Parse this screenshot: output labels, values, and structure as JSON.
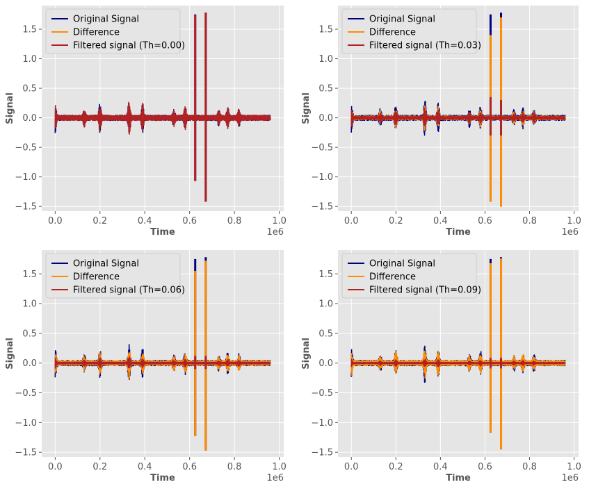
{
  "chart_data": [
    {
      "type": "line",
      "xlabel": "Time",
      "ylabel": "Signal",
      "x_offset_label": "1e6",
      "xlim": [
        -0.06,
        1.02
      ],
      "ylim": [
        -1.58,
        1.9
      ],
      "xticks": [
        0.0,
        0.2,
        0.4,
        0.6,
        0.8,
        1.0
      ],
      "xtick_labels": [
        "0.0",
        "0.2",
        "0.4",
        "0.6",
        "0.8",
        "1.0"
      ],
      "yticks": [
        -1.5,
        -1.0,
        -0.5,
        0.0,
        0.5,
        1.0,
        1.5
      ],
      "ytick_labels": [
        "−1.5",
        "−1.0",
        "−0.5",
        "0.0",
        "0.5",
        "1.0",
        "1.5"
      ],
      "grid": true,
      "legend_placement": "top-left",
      "series": [
        {
          "name": "Original Signal",
          "color": "#000080",
          "amp_scale": 1.0,
          "spikes": [
            {
              "x": 0.625,
              "top": 1.75,
              "bottom": -1.07
            },
            {
              "x": 0.672,
              "top": 1.78,
              "bottom": -1.42
            }
          ]
        },
        {
          "name": "Difference",
          "color": "#ff8c00",
          "amp_scale": 0.0,
          "spikes": []
        },
        {
          "name": "Filtered signal (Th=0.00)",
          "color": "#b22222",
          "amp_scale": 1.0,
          "spikes": [
            {
              "x": 0.625,
              "top": 1.74,
              "bottom": -1.07
            },
            {
              "x": 0.672,
              "top": 1.78,
              "bottom": -1.42
            }
          ]
        }
      ]
    },
    {
      "type": "line",
      "xlabel": "Time",
      "ylabel": "Signal",
      "x_offset_label": "1e6",
      "xlim": [
        -0.06,
        1.02
      ],
      "ylim": [
        -1.58,
        1.9
      ],
      "xticks": [
        0.0,
        0.2,
        0.4,
        0.6,
        0.8,
        1.0
      ],
      "xtick_labels": [
        "0.0",
        "0.2",
        "0.4",
        "0.6",
        "0.8",
        "1.0"
      ],
      "yticks": [
        -1.5,
        -1.0,
        -0.5,
        0.0,
        0.5,
        1.0,
        1.5
      ],
      "ytick_labels": [
        "−1.5",
        "−1.0",
        "−0.5",
        "0.0",
        "0.5",
        "1.0",
        "1.5"
      ],
      "grid": true,
      "legend_placement": "top-left",
      "series": [
        {
          "name": "Original Signal",
          "color": "#000080",
          "amp_scale": 1.0,
          "spikes": [
            {
              "x": 0.625,
              "top": 1.75,
              "bottom": -1.42
            },
            {
              "x": 0.672,
              "top": 1.78,
              "bottom": -1.5
            }
          ]
        },
        {
          "name": "Difference",
          "color": "#ff8c00",
          "amp_scale": 0.75,
          "spikes": [
            {
              "x": 0.625,
              "top": 1.4,
              "bottom": -1.42
            },
            {
              "x": 0.672,
              "top": 1.7,
              "bottom": -1.5
            }
          ]
        },
        {
          "name": "Filtered signal (Th=0.03)",
          "color": "#b22222",
          "amp_scale": 0.55,
          "spikes": [
            {
              "x": 0.625,
              "top": 0.35,
              "bottom": -0.3
            },
            {
              "x": 0.672,
              "top": 0.3,
              "bottom": -0.3
            }
          ]
        }
      ]
    },
    {
      "type": "line",
      "xlabel": "Time",
      "ylabel": "Signal",
      "x_offset_label": "1e6",
      "xlim": [
        -0.06,
        1.02
      ],
      "ylim": [
        -1.58,
        1.9
      ],
      "xticks": [
        0.0,
        0.2,
        0.4,
        0.6,
        0.8,
        1.0
      ],
      "xtick_labels": [
        "0.0",
        "0.2",
        "0.4",
        "0.6",
        "0.8",
        "1.0"
      ],
      "yticks": [
        -1.5,
        -1.0,
        -0.5,
        0.0,
        0.5,
        1.0,
        1.5
      ],
      "ytick_labels": [
        "−1.5",
        "−1.0",
        "−0.5",
        "0.0",
        "0.5",
        "1.0",
        "1.5"
      ],
      "grid": true,
      "legend_placement": "top-left",
      "series": [
        {
          "name": "Original Signal",
          "color": "#000080",
          "amp_scale": 1.0,
          "spikes": [
            {
              "x": 0.625,
              "top": 1.75,
              "bottom": -1.23
            },
            {
              "x": 0.672,
              "top": 1.78,
              "bottom": -1.47
            }
          ]
        },
        {
          "name": "Difference",
          "color": "#ff8c00",
          "amp_scale": 0.85,
          "spikes": [
            {
              "x": 0.625,
              "top": 1.55,
              "bottom": -1.23
            },
            {
              "x": 0.672,
              "top": 1.72,
              "bottom": -1.47
            }
          ]
        },
        {
          "name": "Filtered signal (Th=0.06)",
          "color": "#b22222",
          "amp_scale": 0.35,
          "spikes": [
            {
              "x": 0.625,
              "top": 0.12,
              "bottom": -0.1
            },
            {
              "x": 0.672,
              "top": 0.12,
              "bottom": -0.1
            }
          ]
        }
      ]
    },
    {
      "type": "line",
      "xlabel": "Time",
      "ylabel": "Signal",
      "x_offset_label": "1e6",
      "xlim": [
        -0.06,
        1.02
      ],
      "ylim": [
        -1.58,
        1.9
      ],
      "xticks": [
        0.0,
        0.2,
        0.4,
        0.6,
        0.8,
        1.0
      ],
      "xtick_labels": [
        "0.0",
        "0.2",
        "0.4",
        "0.6",
        "0.8",
        "1.0"
      ],
      "yticks": [
        -1.5,
        -1.0,
        -0.5,
        0.0,
        0.5,
        1.0,
        1.5
      ],
      "ytick_labels": [
        "−1.5",
        "−1.0",
        "−0.5",
        "0.0",
        "0.5",
        "1.0",
        "1.5"
      ],
      "grid": true,
      "legend_placement": "top-left",
      "series": [
        {
          "name": "Original Signal",
          "color": "#000080",
          "amp_scale": 1.0,
          "spikes": [
            {
              "x": 0.625,
              "top": 1.75,
              "bottom": -1.17
            },
            {
              "x": 0.672,
              "top": 1.78,
              "bottom": -1.45
            }
          ]
        },
        {
          "name": "Difference",
          "color": "#ff8c00",
          "amp_scale": 0.88,
          "spikes": [
            {
              "x": 0.625,
              "top": 1.68,
              "bottom": -1.17
            },
            {
              "x": 0.672,
              "top": 1.76,
              "bottom": -1.45
            }
          ]
        },
        {
          "name": "Filtered signal (Th=0.09)",
          "color": "#b22222",
          "amp_scale": 0.25,
          "spikes": [
            {
              "x": 0.625,
              "top": 0.09,
              "bottom": -0.09
            },
            {
              "x": 0.672,
              "top": 0.09,
              "bottom": -0.09
            }
          ]
        }
      ]
    }
  ],
  "signal_envelope": {
    "x_end": 0.96,
    "baseline_amplitude": 0.045,
    "bursts": [
      {
        "x": 0.0,
        "amp": 0.23
      },
      {
        "x": 0.13,
        "amp": 0.12
      },
      {
        "x": 0.2,
        "amp": 0.22
      },
      {
        "x": 0.33,
        "amp": 0.3
      },
      {
        "x": 0.39,
        "amp": 0.22
      },
      {
        "x": 0.53,
        "amp": 0.12
      },
      {
        "x": 0.58,
        "amp": 0.17
      },
      {
        "x": 0.73,
        "amp": 0.1
      },
      {
        "x": 0.77,
        "amp": 0.15
      },
      {
        "x": 0.82,
        "amp": 0.12
      }
    ]
  }
}
